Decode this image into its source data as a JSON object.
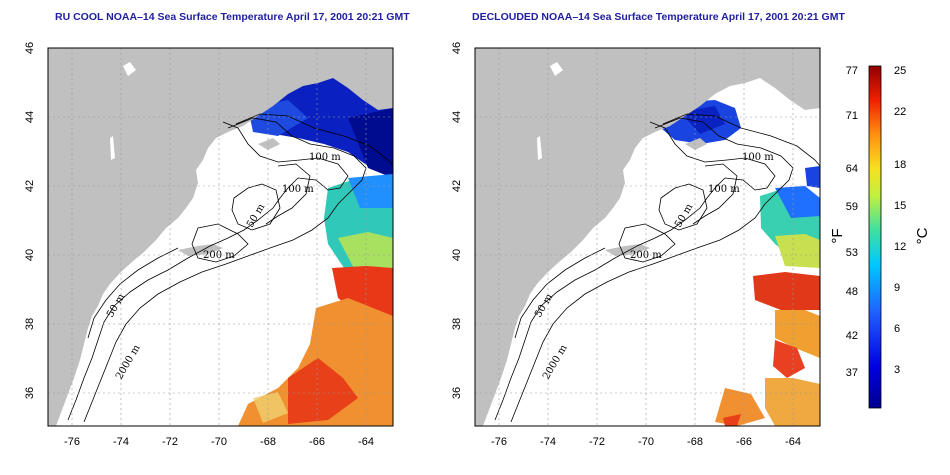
{
  "panels": [
    {
      "title": "RU COOL NOAA–14 Sea Surface Temperature April 17, 2001 20:21 GMT",
      "contours": [
        "100 m",
        "100 m",
        "50 m",
        "200 m",
        "50 m",
        "2000 m"
      ],
      "lat_ticks": [
        "46",
        "44",
        "42",
        "40",
        "38",
        "36"
      ],
      "lon_ticks": [
        "-76",
        "-74",
        "-72",
        "-70",
        "-68",
        "-66",
        "-64"
      ]
    },
    {
      "title": "DECLOUDED NOAA–14 Sea Surface Temperature April 17, 2001 20:21 GMT",
      "contours": [
        "100 m",
        "100 m",
        "50 m",
        "200 m",
        "50 m",
        "2000 m"
      ],
      "lat_ticks": [
        "46",
        "44",
        "42",
        "40",
        "38",
        "36"
      ],
      "lon_ticks": [
        "-76",
        "-74",
        "-72",
        "-70",
        "-68",
        "-66",
        "-64"
      ]
    }
  ],
  "colorbar": {
    "fahrenheit_label": "°F",
    "celsius_label": "°C",
    "fahrenheit_ticks": [
      "77",
      "71",
      "64",
      "59",
      "53",
      "48",
      "42",
      "37"
    ],
    "celsius_ticks": [
      "25",
      "22",
      "18",
      "15",
      "12",
      "9",
      "6",
      "3"
    ]
  },
  "colors": {
    "land": "#c0c0c0",
    "ocean_background": "#ffffff",
    "cold": "#0018b8",
    "cool": "#2a6cf0",
    "mid": "#28c8b8",
    "warm": "#f0e040",
    "hot": "#e02010",
    "title": "#2020a0"
  }
}
